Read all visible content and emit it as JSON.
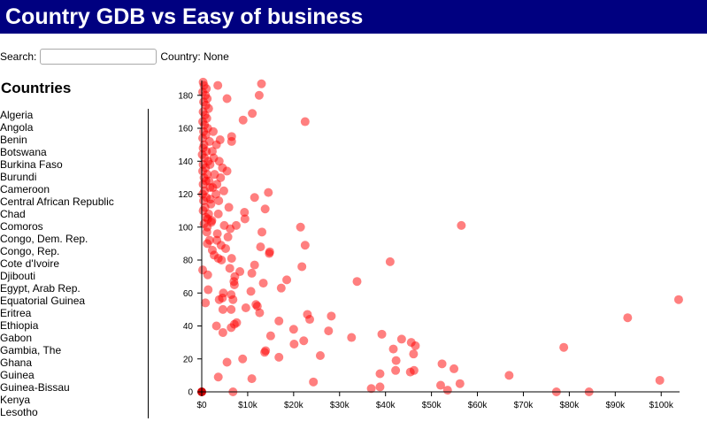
{
  "header": {
    "title": "Country GDB vs Easy of business"
  },
  "search": {
    "label": "Search:",
    "value": "",
    "placeholder": ""
  },
  "selection": {
    "label": "Country:",
    "value": "None"
  },
  "sidebar": {
    "title": "Countries",
    "countries": [
      "Algeria",
      "Angola",
      "Benin",
      "Botswana",
      "Burkina Faso",
      "Burundi",
      "Cameroon",
      "Central African Republic",
      "Chad",
      "Comoros",
      "Congo, Dem. Rep.",
      "Congo, Rep.",
      "Cote d'Ivoire",
      "Djibouti",
      "Egypt, Arab Rep.",
      "Equatorial Guinea",
      "Eritrea",
      "Ethiopia",
      "Gabon",
      "Gambia, The",
      "Ghana",
      "Guinea",
      "Guinea-Bissau",
      "Kenya",
      "Lesotho"
    ]
  },
  "colors": {
    "header_bg": "#000080",
    "point": "#ff0000",
    "highlight_point": "#cc0000"
  },
  "chart_data": {
    "type": "scatter",
    "x_tick_labels": [
      "$0",
      "$10k",
      "$20k",
      "$30k",
      "$40k",
      "$50k",
      "$60k",
      "$70k",
      "$80k",
      "$90k",
      "$100k"
    ],
    "y_tick_labels": [
      "0",
      "20",
      "40",
      "60",
      "80",
      "100",
      "120",
      "140",
      "160",
      "180"
    ],
    "xlim": [
      0,
      104000
    ],
    "ylim": [
      0,
      189
    ],
    "grid": false,
    "highlighted": [
      {
        "x": 0,
        "y": 0
      }
    ],
    "points": [
      {
        "x": 300,
        "y": 188
      },
      {
        "x": 500,
        "y": 186
      },
      {
        "x": 1000,
        "y": 184
      },
      {
        "x": 200,
        "y": 182
      },
      {
        "x": 800,
        "y": 180
      },
      {
        "x": 1200,
        "y": 178
      },
      {
        "x": 400,
        "y": 176
      },
      {
        "x": 900,
        "y": 174
      },
      {
        "x": 1500,
        "y": 172
      },
      {
        "x": 300,
        "y": 170
      },
      {
        "x": 700,
        "y": 168
      },
      {
        "x": 1100,
        "y": 166
      },
      {
        "x": 200,
        "y": 164
      },
      {
        "x": 600,
        "y": 162
      },
      {
        "x": 1300,
        "y": 160
      },
      {
        "x": 400,
        "y": 158
      },
      {
        "x": 900,
        "y": 156
      },
      {
        "x": 200,
        "y": 154
      },
      {
        "x": 1700,
        "y": 152
      },
      {
        "x": 500,
        "y": 150
      },
      {
        "x": 300,
        "y": 148
      },
      {
        "x": 1000,
        "y": 146
      },
      {
        "x": 100,
        "y": 144
      },
      {
        "x": 600,
        "y": 142
      },
      {
        "x": 1400,
        "y": 140
      },
      {
        "x": 300,
        "y": 138
      },
      {
        "x": 800,
        "y": 136
      },
      {
        "x": 200,
        "y": 134
      },
      {
        "x": 1200,
        "y": 132
      },
      {
        "x": 500,
        "y": 130
      },
      {
        "x": 900,
        "y": 128
      },
      {
        "x": 300,
        "y": 126
      },
      {
        "x": 1800,
        "y": 124
      },
      {
        "x": 600,
        "y": 122
      },
      {
        "x": 200,
        "y": 120
      },
      {
        "x": 1000,
        "y": 118
      },
      {
        "x": 400,
        "y": 116
      },
      {
        "x": 2000,
        "y": 114
      },
      {
        "x": 700,
        "y": 112
      },
      {
        "x": 300,
        "y": 110
      },
      {
        "x": 1500,
        "y": 108
      },
      {
        "x": 900,
        "y": 106
      },
      {
        "x": 2200,
        "y": 104
      },
      {
        "x": 500,
        "y": 102
      },
      {
        "x": 1200,
        "y": 100
      },
      {
        "x": 3500,
        "y": 186
      },
      {
        "x": 5500,
        "y": 178
      },
      {
        "x": 9000,
        "y": 165
      },
      {
        "x": 11000,
        "y": 169
      },
      {
        "x": 12500,
        "y": 180
      },
      {
        "x": 13000,
        "y": 187
      },
      {
        "x": 22500,
        "y": 164
      },
      {
        "x": 2500,
        "y": 158
      },
      {
        "x": 4000,
        "y": 153
      },
      {
        "x": 6500,
        "y": 155
      },
      {
        "x": 6500,
        "y": 152
      },
      {
        "x": 3200,
        "y": 150
      },
      {
        "x": 2300,
        "y": 146
      },
      {
        "x": 2600,
        "y": 142
      },
      {
        "x": 3800,
        "y": 140
      },
      {
        "x": 1800,
        "y": 138
      },
      {
        "x": 4500,
        "y": 136
      },
      {
        "x": 5500,
        "y": 134
      },
      {
        "x": 2800,
        "y": 132
      },
      {
        "x": 4100,
        "y": 130
      },
      {
        "x": 1600,
        "y": 128
      },
      {
        "x": 3300,
        "y": 126
      },
      {
        "x": 2400,
        "y": 124
      },
      {
        "x": 4800,
        "y": 122
      },
      {
        "x": 3100,
        "y": 120
      },
      {
        "x": 14500,
        "y": 121
      },
      {
        "x": 11500,
        "y": 118
      },
      {
        "x": 1900,
        "y": 117
      },
      {
        "x": 3700,
        "y": 116
      },
      {
        "x": 5900,
        "y": 112
      },
      {
        "x": 13800,
        "y": 111
      },
      {
        "x": 9300,
        "y": 109
      },
      {
        "x": 3600,
        "y": 108
      },
      {
        "x": 9400,
        "y": 105
      },
      {
        "x": 1300,
        "y": 105
      },
      {
        "x": 2100,
        "y": 103
      },
      {
        "x": 4900,
        "y": 101
      },
      {
        "x": 7500,
        "y": 101
      },
      {
        "x": 21500,
        "y": 100
      },
      {
        "x": 56500,
        "y": 101
      },
      {
        "x": 6200,
        "y": 99
      },
      {
        "x": 1100,
        "y": 97
      },
      {
        "x": 13100,
        "y": 97
      },
      {
        "x": 3400,
        "y": 96
      },
      {
        "x": 5700,
        "y": 94
      },
      {
        "x": 1700,
        "y": 92
      },
      {
        "x": 3300,
        "y": 92
      },
      {
        "x": 1200,
        "y": 90
      },
      {
        "x": 4200,
        "y": 89
      },
      {
        "x": 22500,
        "y": 89
      },
      {
        "x": 12800,
        "y": 88
      },
      {
        "x": 5200,
        "y": 87
      },
      {
        "x": 2300,
        "y": 86
      },
      {
        "x": 14800,
        "y": 85
      },
      {
        "x": 14700,
        "y": 84
      },
      {
        "x": 2700,
        "y": 83
      },
      {
        "x": 3600,
        "y": 81
      },
      {
        "x": 6500,
        "y": 81
      },
      {
        "x": 41000,
        "y": 79
      },
      {
        "x": 4300,
        "y": 80
      },
      {
        "x": 11500,
        "y": 77
      },
      {
        "x": 21800,
        "y": 76
      },
      {
        "x": 6100,
        "y": 75
      },
      {
        "x": 200,
        "y": 74
      },
      {
        "x": 8300,
        "y": 73
      },
      {
        "x": 10900,
        "y": 72
      },
      {
        "x": 1300,
        "y": 71
      },
      {
        "x": 7200,
        "y": 70
      },
      {
        "x": 18500,
        "y": 68
      },
      {
        "x": 7000,
        "y": 67
      },
      {
        "x": 33800,
        "y": 67
      },
      {
        "x": 13400,
        "y": 66
      },
      {
        "x": 7100,
        "y": 65
      },
      {
        "x": 17300,
        "y": 63
      },
      {
        "x": 1400,
        "y": 62
      },
      {
        "x": 10700,
        "y": 61
      },
      {
        "x": 4700,
        "y": 60
      },
      {
        "x": 6400,
        "y": 59
      },
      {
        "x": 4500,
        "y": 57
      },
      {
        "x": 3800,
        "y": 56
      },
      {
        "x": 6800,
        "y": 56
      },
      {
        "x": 800,
        "y": 54
      },
      {
        "x": 11800,
        "y": 53
      },
      {
        "x": 12100,
        "y": 52
      },
      {
        "x": 9600,
        "y": 51
      },
      {
        "x": 4600,
        "y": 50
      },
      {
        "x": 6400,
        "y": 50
      },
      {
        "x": 12600,
        "y": 48
      },
      {
        "x": 23000,
        "y": 47
      },
      {
        "x": 28200,
        "y": 46
      },
      {
        "x": 23500,
        "y": 44
      },
      {
        "x": 16800,
        "y": 43
      },
      {
        "x": 7600,
        "y": 42
      },
      {
        "x": 7100,
        "y": 41
      },
      {
        "x": 3200,
        "y": 40
      },
      {
        "x": 6400,
        "y": 39
      },
      {
        "x": 20000,
        "y": 38
      },
      {
        "x": 27600,
        "y": 37
      },
      {
        "x": 4600,
        "y": 36
      },
      {
        "x": 39200,
        "y": 35
      },
      {
        "x": 15000,
        "y": 34
      },
      {
        "x": 32600,
        "y": 33
      },
      {
        "x": 43500,
        "y": 32
      },
      {
        "x": 22200,
        "y": 31
      },
      {
        "x": 45600,
        "y": 30
      },
      {
        "x": 20100,
        "y": 29
      },
      {
        "x": 46500,
        "y": 28
      },
      {
        "x": 41700,
        "y": 26
      },
      {
        "x": 13900,
        "y": 25
      },
      {
        "x": 13700,
        "y": 24
      },
      {
        "x": 46100,
        "y": 23
      },
      {
        "x": 25800,
        "y": 22
      },
      {
        "x": 16800,
        "y": 21
      },
      {
        "x": 8900,
        "y": 20
      },
      {
        "x": 42300,
        "y": 19
      },
      {
        "x": 5500,
        "y": 18
      },
      {
        "x": 52300,
        "y": 17
      },
      {
        "x": 54900,
        "y": 14
      },
      {
        "x": 42200,
        "y": 13
      },
      {
        "x": 46200,
        "y": 13
      },
      {
        "x": 45400,
        "y": 12
      },
      {
        "x": 38800,
        "y": 11
      },
      {
        "x": 66900,
        "y": 10
      },
      {
        "x": 3600,
        "y": 9
      },
      {
        "x": 10900,
        "y": 8
      },
      {
        "x": 99700,
        "y": 7
      },
      {
        "x": 24300,
        "y": 6
      },
      {
        "x": 56200,
        "y": 5
      },
      {
        "x": 52000,
        "y": 4
      },
      {
        "x": 38800,
        "y": 3
      },
      {
        "x": 36900,
        "y": 2
      },
      {
        "x": 53500,
        "y": 1
      },
      {
        "x": 77200,
        "y": 0
      },
      {
        "x": 84300,
        "y": 0
      },
      {
        "x": 6800,
        "y": 0
      },
      {
        "x": 92700,
        "y": 45
      },
      {
        "x": 103800,
        "y": 56
      },
      {
        "x": 78800,
        "y": 27
      }
    ]
  }
}
